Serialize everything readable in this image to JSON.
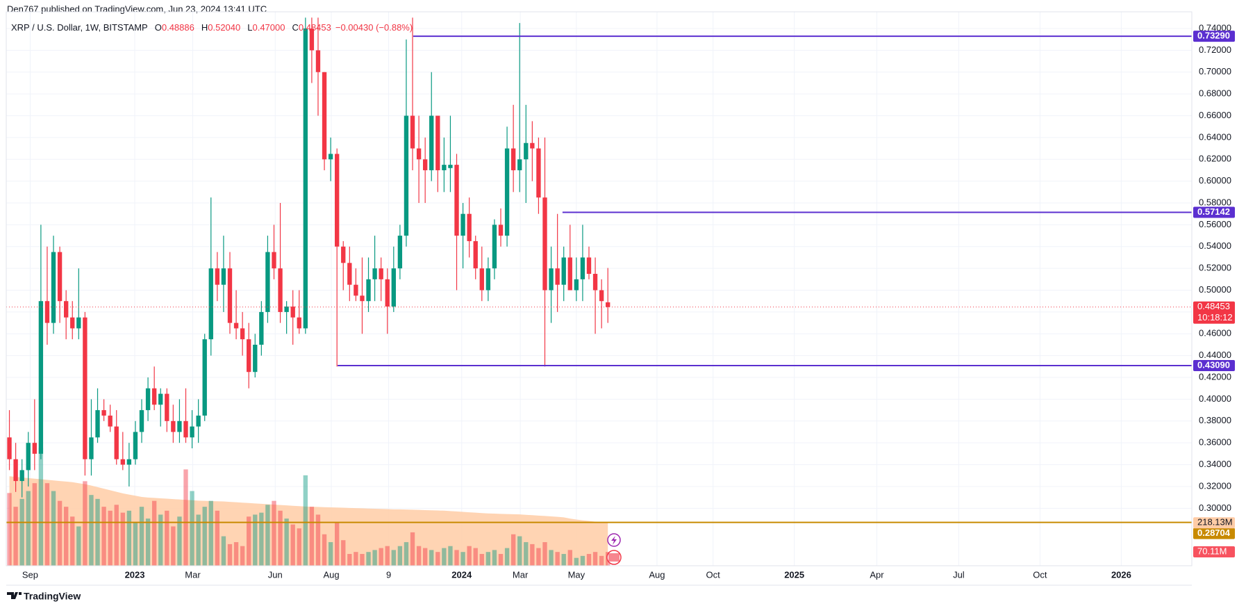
{
  "header": {
    "published": "Den767 published on TradingView.com, Jun 23, 2024 13:41 UTC"
  },
  "chart_data": {
    "type": "candlestick",
    "legend": {
      "symbol": "XRP / U.S. Dollar, 1W, BITSTAMP",
      "open_label": "O",
      "open": "0.48886",
      "high_label": "H",
      "high": "0.52040",
      "low_label": "L",
      "low": "0.47000",
      "close_label": "C",
      "close": "0.48453",
      "change": "−0.00430 (−0.88%)"
    },
    "up_color": "#089981",
    "down_color": "#f23645",
    "ohlc": [
      [
        0.365,
        0.39,
        0.335,
        0.345
      ],
      [
        0.345,
        0.36,
        0.315,
        0.325
      ],
      [
        0.325,
        0.345,
        0.31,
        0.335
      ],
      [
        0.335,
        0.37,
        0.32,
        0.36
      ],
      [
        0.36,
        0.4,
        0.335,
        0.35
      ],
      [
        0.35,
        0.56,
        0.345,
        0.49
      ],
      [
        0.49,
        0.54,
        0.45,
        0.47
      ],
      [
        0.47,
        0.55,
        0.46,
        0.535
      ],
      [
        0.535,
        0.54,
        0.47,
        0.49
      ],
      [
        0.49,
        0.5,
        0.455,
        0.475
      ],
      [
        0.475,
        0.49,
        0.455,
        0.465
      ],
      [
        0.465,
        0.52,
        0.455,
        0.475
      ],
      [
        0.475,
        0.48,
        0.33,
        0.345
      ],
      [
        0.345,
        0.4,
        0.33,
        0.365
      ],
      [
        0.365,
        0.41,
        0.36,
        0.39
      ],
      [
        0.39,
        0.4,
        0.38,
        0.385
      ],
      [
        0.385,
        0.395,
        0.37,
        0.375
      ],
      [
        0.375,
        0.39,
        0.34,
        0.345
      ],
      [
        0.345,
        0.37,
        0.335,
        0.34
      ],
      [
        0.34,
        0.36,
        0.32,
        0.345
      ],
      [
        0.345,
        0.38,
        0.34,
        0.37
      ],
      [
        0.37,
        0.4,
        0.36,
        0.39
      ],
      [
        0.39,
        0.42,
        0.38,
        0.41
      ],
      [
        0.41,
        0.43,
        0.39,
        0.395
      ],
      [
        0.395,
        0.41,
        0.375,
        0.405
      ],
      [
        0.405,
        0.41,
        0.37,
        0.38
      ],
      [
        0.38,
        0.395,
        0.36,
        0.37
      ],
      [
        0.37,
        0.4,
        0.36,
        0.38
      ],
      [
        0.38,
        0.41,
        0.36,
        0.365
      ],
      [
        0.365,
        0.39,
        0.355,
        0.375
      ],
      [
        0.375,
        0.4,
        0.36,
        0.385
      ],
      [
        0.385,
        0.46,
        0.38,
        0.455
      ],
      [
        0.455,
        0.585,
        0.44,
        0.52
      ],
      [
        0.52,
        0.535,
        0.49,
        0.505
      ],
      [
        0.505,
        0.55,
        0.48,
        0.52
      ],
      [
        0.52,
        0.535,
        0.46,
        0.47
      ],
      [
        0.47,
        0.5,
        0.455,
        0.465
      ],
      [
        0.465,
        0.48,
        0.44,
        0.455
      ],
      [
        0.455,
        0.47,
        0.41,
        0.425
      ],
      [
        0.425,
        0.46,
        0.42,
        0.45
      ],
      [
        0.45,
        0.49,
        0.44,
        0.48
      ],
      [
        0.48,
        0.55,
        0.47,
        0.535
      ],
      [
        0.535,
        0.56,
        0.51,
        0.52
      ],
      [
        0.52,
        0.58,
        0.47,
        0.48
      ],
      [
        0.48,
        0.49,
        0.46,
        0.485
      ],
      [
        0.485,
        0.5,
        0.45,
        0.475
      ],
      [
        0.475,
        0.5,
        0.46,
        0.465
      ],
      [
        0.465,
        0.75,
        0.46,
        0.74
      ],
      [
        0.74,
        0.75,
        0.69,
        0.72
      ],
      [
        0.72,
        0.75,
        0.66,
        0.7
      ],
      [
        0.7,
        0.7,
        0.61,
        0.62
      ],
      [
        0.62,
        0.64,
        0.6,
        0.625
      ],
      [
        0.625,
        0.63,
        0.43,
        0.54
      ],
      [
        0.54,
        0.545,
        0.5,
        0.525
      ],
      [
        0.525,
        0.54,
        0.49,
        0.505
      ],
      [
        0.505,
        0.52,
        0.49,
        0.495
      ],
      [
        0.495,
        0.53,
        0.46,
        0.49
      ],
      [
        0.49,
        0.53,
        0.48,
        0.51
      ],
      [
        0.51,
        0.55,
        0.49,
        0.52
      ],
      [
        0.52,
        0.53,
        0.49,
        0.51
      ],
      [
        0.51,
        0.52,
        0.46,
        0.485
      ],
      [
        0.485,
        0.54,
        0.48,
        0.52
      ],
      [
        0.52,
        0.56,
        0.51,
        0.55
      ],
      [
        0.55,
        0.73,
        0.54,
        0.66
      ],
      [
        0.66,
        0.75,
        0.61,
        0.63
      ],
      [
        0.63,
        0.66,
        0.58,
        0.62
      ],
      [
        0.62,
        0.64,
        0.58,
        0.61
      ],
      [
        0.61,
        0.7,
        0.6,
        0.66
      ],
      [
        0.66,
        0.66,
        0.59,
        0.61
      ],
      [
        0.61,
        0.64,
        0.59,
        0.615
      ],
      [
        0.612,
        0.66,
        0.59,
        0.615
      ],
      [
        0.615,
        0.625,
        0.5,
        0.55
      ],
      [
        0.55,
        0.58,
        0.52,
        0.57
      ],
      [
        0.57,
        0.585,
        0.53,
        0.545
      ],
      [
        0.545,
        0.55,
        0.51,
        0.52
      ],
      [
        0.52,
        0.54,
        0.49,
        0.5
      ],
      [
        0.5,
        0.53,
        0.49,
        0.52
      ],
      [
        0.52,
        0.565,
        0.51,
        0.56
      ],
      [
        0.56,
        0.575,
        0.54,
        0.55
      ],
      [
        0.55,
        0.65,
        0.54,
        0.63
      ],
      [
        0.63,
        0.67,
        0.59,
        0.61
      ],
      [
        0.61,
        0.745,
        0.59,
        0.62
      ],
      [
        0.62,
        0.67,
        0.58,
        0.635
      ],
      [
        0.635,
        0.655,
        0.6,
        0.63
      ],
      [
        0.63,
        0.64,
        0.57,
        0.585
      ],
      [
        0.585,
        0.64,
        0.43,
        0.5
      ],
      [
        0.5,
        0.54,
        0.47,
        0.52
      ],
      [
        0.52,
        0.57,
        0.48,
        0.505
      ],
      [
        0.505,
        0.54,
        0.49,
        0.53
      ],
      [
        0.53,
        0.56,
        0.5,
        0.5
      ],
      [
        0.5,
        0.53,
        0.49,
        0.51
      ],
      [
        0.51,
        0.56,
        0.49,
        0.53
      ],
      [
        0.53,
        0.54,
        0.51,
        0.515
      ],
      [
        0.515,
        0.53,
        0.46,
        0.5
      ],
      [
        0.5,
        0.51,
        0.465,
        0.49
      ],
      [
        0.48886,
        0.5204,
        0.47,
        0.48453
      ]
    ],
    "volume": [
      370,
      300,
      340,
      380,
      420,
      600,
      420,
      380,
      330,
      300,
      250,
      200,
      430,
      360,
      340,
      300,
      280,
      310,
      270,
      280,
      220,
      300,
      240,
      330,
      260,
      280,
      200,
      250,
      490,
      380,
      260,
      300,
      330,
      280,
      150,
      110,
      120,
      100,
      250,
      260,
      270,
      310,
      330,
      280,
      240,
      210,
      190,
      460,
      300,
      260,
      160,
      120,
      220,
      130,
      60,
      70,
      60,
      70,
      80,
      90,
      100,
      80,
      100,
      120,
      170,
      100,
      90,
      80,
      70,
      90,
      100,
      80,
      70,
      100,
      90,
      60,
      70,
      80,
      60,
      90,
      160,
      150,
      120,
      110,
      90,
      120,
      80,
      70,
      60,
      80,
      40,
      50,
      60,
      70,
      50,
      70.11
    ],
    "volume_ma": [
      455,
      452,
      449,
      446,
      443,
      440,
      437,
      434,
      431,
      428,
      425,
      420,
      415,
      408,
      400,
      392,
      384,
      376,
      368,
      362,
      356,
      350,
      347,
      345,
      343,
      341,
      339,
      337,
      335,
      333,
      331,
      330,
      329,
      328,
      327,
      325,
      323,
      321,
      319,
      317,
      315,
      313,
      311,
      309,
      307,
      305,
      303,
      301,
      300,
      299,
      298,
      297,
      296,
      295,
      294,
      293,
      292,
      291,
      290,
      289,
      288,
      287,
      287,
      286,
      285,
      284,
      283,
      282,
      281,
      280,
      278,
      276,
      274,
      272,
      270,
      268,
      266,
      265,
      264,
      263,
      262,
      261,
      259,
      257,
      255,
      253,
      251,
      249,
      246,
      240,
      235,
      231,
      228,
      224,
      221,
      218.13
    ],
    "volume_label": "70.11M",
    "volume_ma_label": "218.13M",
    "volume_ylim": [
      0,
      700
    ],
    "volume_ma_color": "#ffcca6",
    "countdown": "10:18:12",
    "levels": [
      {
        "value": 0.7329,
        "label": "0.73290",
        "start": 64.1,
        "color": "#5b2fd0"
      },
      {
        "value": 0.57142,
        "label": "0.57142",
        "start": 87.8,
        "color": "#5b2fd0"
      },
      {
        "value": 0.4309,
        "label": "0.43090",
        "start": 52.1,
        "color": "#5b2fd0"
      },
      {
        "value": 0.28704,
        "label": "0.28704",
        "start": -0.5,
        "color": "#c88a00"
      }
    ],
    "xlim": [
      -0.5,
      187.7
    ],
    "ylim": [
      0.2473,
      0.7553
    ],
    "yticks": [
      {
        "value": 0.3,
        "label": "0.30000"
      },
      {
        "value": 0.32,
        "label": "0.32000"
      },
      {
        "value": 0.34,
        "label": "0.34000"
      },
      {
        "value": 0.36,
        "label": "0.36000"
      },
      {
        "value": 0.38,
        "label": "0.38000"
      },
      {
        "value": 0.4,
        "label": "0.40000"
      },
      {
        "value": 0.42,
        "label": "0.42000"
      },
      {
        "value": 0.44,
        "label": "0.44000"
      },
      {
        "value": 0.46,
        "label": "0.46000"
      },
      {
        "value": 0.48,
        "label": "0.48000"
      },
      {
        "value": 0.5,
        "label": "0.50000"
      },
      {
        "value": 0.52,
        "label": "0.52000"
      },
      {
        "value": 0.54,
        "label": "0.54000"
      },
      {
        "value": 0.56,
        "label": "0.56000"
      },
      {
        "value": 0.58,
        "label": "0.58000"
      },
      {
        "value": 0.6,
        "label": "0.60000"
      },
      {
        "value": 0.62,
        "label": "0.62000"
      },
      {
        "value": 0.64,
        "label": "0.64000"
      },
      {
        "value": 0.66,
        "label": "0.66000"
      },
      {
        "value": 0.68,
        "label": "0.68000"
      },
      {
        "value": 0.7,
        "label": "0.70000"
      },
      {
        "value": 0.72,
        "label": "0.72000"
      },
      {
        "value": 0.74,
        "label": "0.74000"
      }
    ],
    "xticks": [
      {
        "value": 3.3,
        "label": "Sep"
      },
      {
        "value": 19.9,
        "label": "2023",
        "bold": true
      },
      {
        "value": 29.1,
        "label": "Mar"
      },
      {
        "value": 42.2,
        "label": "Jun"
      },
      {
        "value": 51.1,
        "label": "Aug"
      },
      {
        "value": 60.2,
        "label": "9"
      },
      {
        "value": 71.8,
        "label": "2024",
        "bold": true
      },
      {
        "value": 81.1,
        "label": "Mar"
      },
      {
        "value": 90,
        "label": "May"
      },
      {
        "value": 102.8,
        "label": "Aug"
      },
      {
        "value": 111.7,
        "label": "Oct"
      },
      {
        "value": 124.6,
        "label": "2025",
        "bold": true
      },
      {
        "value": 137.7,
        "label": "Apr"
      },
      {
        "value": 150.7,
        "label": "Jul"
      },
      {
        "value": 163.6,
        "label": "Oct"
      },
      {
        "value": 176.5,
        "label": "2026",
        "bold": true
      }
    ],
    "grid": true
  },
  "footer": {
    "brand": "TradingView"
  }
}
